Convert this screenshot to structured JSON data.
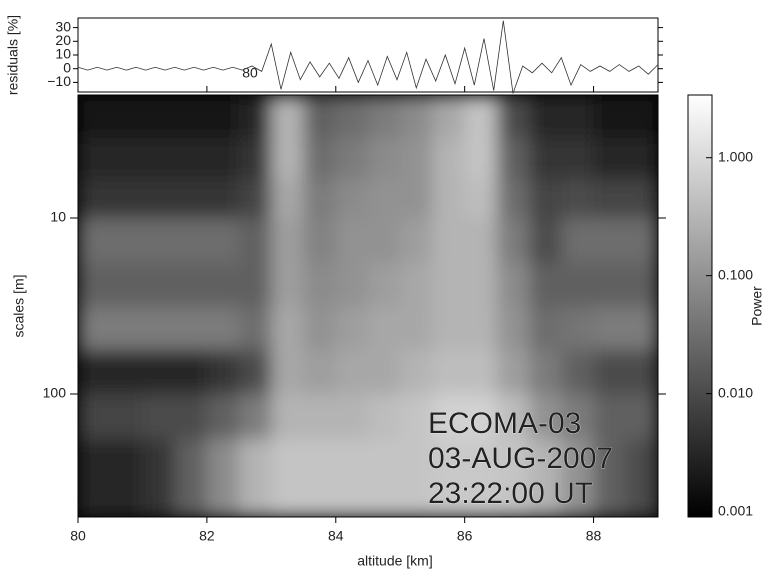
{
  "chart_data": [
    {
      "type": "line",
      "ylabel": "residuals [%]",
      "annotation": "80",
      "color": "#333333",
      "xlim": [
        80,
        89
      ],
      "ylim": [
        -17,
        37
      ],
      "yticks": [
        {
          "value": -10,
          "label": "−10"
        },
        0,
        10,
        20,
        30
      ],
      "x": [
        80,
        80.15,
        80.3,
        80.45,
        80.6,
        80.75,
        80.9,
        81.05,
        81.2,
        81.35,
        81.5,
        81.65,
        81.8,
        81.95,
        82.1,
        82.25,
        82.4,
        82.55,
        82.7,
        82.85,
        83,
        83.15,
        83.3,
        83.45,
        83.6,
        83.75,
        83.9,
        84.05,
        84.2,
        84.35,
        84.5,
        84.65,
        84.8,
        84.95,
        85.1,
        85.25,
        85.4,
        85.55,
        85.7,
        85.85,
        86,
        86.15,
        86.3,
        86.45,
        86.6,
        86.75,
        86.9,
        87.05,
        87.2,
        87.35,
        87.5,
        87.65,
        87.8,
        87.95,
        88.1,
        88.25,
        88.4,
        88.55,
        88.7,
        88.85,
        89
      ],
      "values": [
        1,
        -1,
        1,
        -1,
        1,
        -1,
        1,
        -1,
        1,
        -1,
        1,
        -1,
        1,
        -1,
        1,
        -1,
        1,
        -1,
        2,
        -2,
        18,
        -15,
        12,
        -8,
        5,
        -6,
        4,
        -7,
        8,
        -10,
        6,
        -12,
        9,
        -8,
        12,
        -14,
        7,
        -9,
        10,
        -11,
        15,
        -12,
        22,
        -16,
        35,
        -18,
        2,
        -3,
        4,
        -3,
        8,
        -12,
        3,
        -2,
        2,
        -2,
        3,
        -2,
        2,
        -4,
        3
      ]
    },
    {
      "type": "heatmap",
      "xlabel": "altitude [km]",
      "ylabel": "scales [m]",
      "xlim": [
        80,
        89
      ],
      "xticks": [
        80,
        82,
        84,
        86,
        88
      ],
      "ylim": [
        2,
        500
      ],
      "yticks": [
        10,
        100
      ],
      "y_log": true,
      "y_reversed": true,
      "x_edges": [
        80,
        80.5,
        81,
        81.5,
        82,
        82.5,
        83,
        83.5,
        84,
        84.5,
        85,
        85.5,
        86,
        86.5,
        87,
        87.5,
        88,
        88.5,
        89
      ],
      "y_edges": [
        2,
        3.5,
        6,
        10,
        18,
        32,
        56,
        100,
        180,
        500
      ],
      "z": [
        [
          0.002,
          0.002,
          0.002,
          0.002,
          0.002,
          0.003,
          0.3,
          0.02,
          0.03,
          0.05,
          0.08,
          0.2,
          0.5,
          0.01,
          0.003,
          0.003,
          0.002,
          0.002
        ],
        [
          0.003,
          0.003,
          0.003,
          0.003,
          0.003,
          0.005,
          0.3,
          0.03,
          0.05,
          0.08,
          0.1,
          0.3,
          0.5,
          0.02,
          0.005,
          0.005,
          0.003,
          0.003
        ],
        [
          0.005,
          0.005,
          0.005,
          0.005,
          0.005,
          0.008,
          0.2,
          0.05,
          0.08,
          0.1,
          0.1,
          0.3,
          0.4,
          0.03,
          0.008,
          0.01,
          0.008,
          0.008
        ],
        [
          0.03,
          0.03,
          0.03,
          0.03,
          0.03,
          0.02,
          0.15,
          0.06,
          0.1,
          0.1,
          0.15,
          0.3,
          0.3,
          0.05,
          0.01,
          0.03,
          0.03,
          0.03
        ],
        [
          0.02,
          0.02,
          0.02,
          0.02,
          0.02,
          0.02,
          0.15,
          0.08,
          0.1,
          0.15,
          0.2,
          0.3,
          0.3,
          0.08,
          0.02,
          0.02,
          0.02,
          0.02
        ],
        [
          0.05,
          0.05,
          0.05,
          0.05,
          0.05,
          0.03,
          0.2,
          0.1,
          0.15,
          0.2,
          0.2,
          0.3,
          0.3,
          0.1,
          0.03,
          0.04,
          0.05,
          0.05
        ],
        [
          0.003,
          0.003,
          0.003,
          0.003,
          0.005,
          0.01,
          0.2,
          0.15,
          0.2,
          0.2,
          0.3,
          0.4,
          0.4,
          0.15,
          0.05,
          0.02,
          0.01,
          0.01
        ],
        [
          0.008,
          0.008,
          0.01,
          0.01,
          0.02,
          0.05,
          0.3,
          0.3,
          0.3,
          0.4,
          0.5,
          0.8,
          0.8,
          0.4,
          0.1,
          0.05,
          0.02,
          0.02
        ],
        [
          0.003,
          0.003,
          0.005,
          0.02,
          0.08,
          0.3,
          0.5,
          0.5,
          0.5,
          0.5,
          0.5,
          0.6,
          0.6,
          0.5,
          0.3,
          0.1,
          0.02,
          0.01
        ]
      ],
      "colorbar": {
        "label": "Power",
        "log": true,
        "lim": [
          0.0009,
          3.4
        ],
        "ticks": [
          {
            "value": 0.001,
            "label": "0.001"
          },
          {
            "value": 0.01,
            "label": "0.010"
          },
          {
            "value": 0.1,
            "label": "0.100"
          },
          {
            "value": 1,
            "label": "1.000"
          }
        ]
      },
      "annotations": [
        "ECOMA-03",
        "03-AUG-2007",
        "23:22:00 UT"
      ]
    }
  ]
}
